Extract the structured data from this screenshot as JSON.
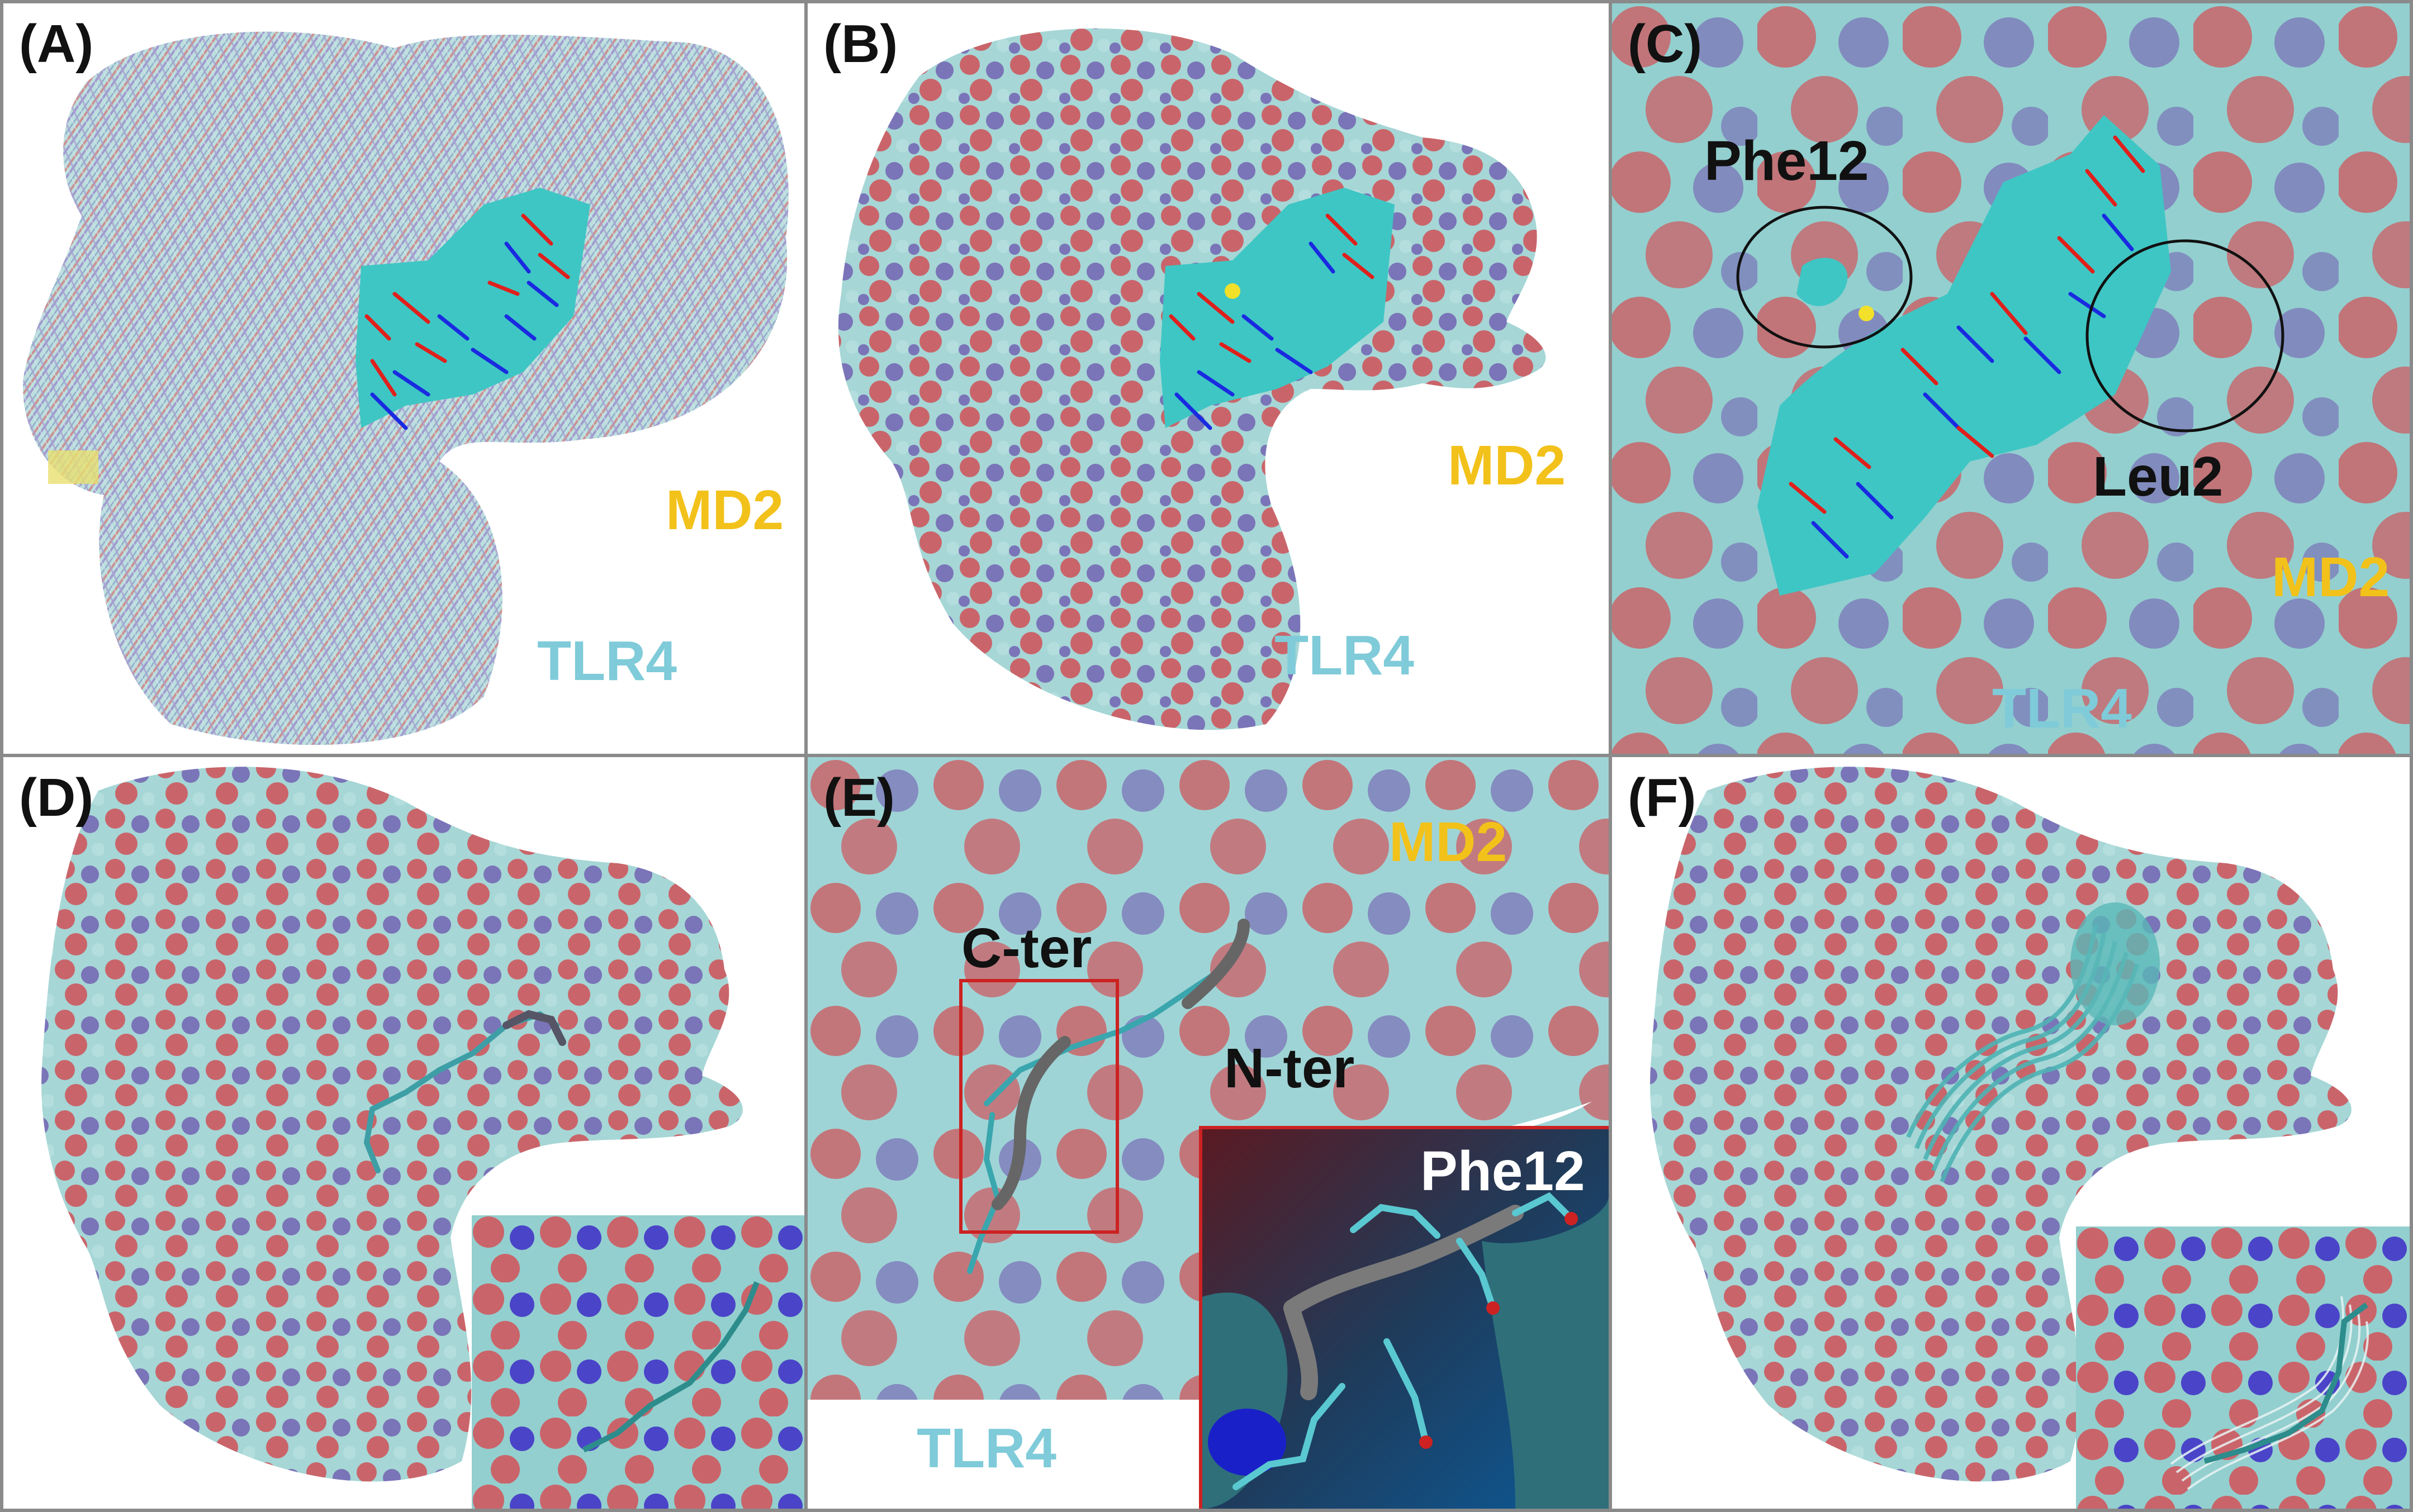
{
  "panels": {
    "a": {
      "label": "(A)",
      "md2": "MD2",
      "tlr4": "TLR4"
    },
    "b": {
      "label": "(B)",
      "md2": "MD2",
      "tlr4": "TLR4"
    },
    "c": {
      "label": "(C)",
      "phe": "Phe12",
      "leu": "Leu2",
      "md2": "MD2",
      "tlr4": "TLR4"
    },
    "d": {
      "label": "(D)"
    },
    "e": {
      "label": "(E)",
      "md2": "MD2",
      "cter": "C-ter",
      "nter": "N-ter",
      "tlr4": "TLR4",
      "inset_phe": "Phe12"
    },
    "f": {
      "label": "(F)"
    }
  },
  "colors": {
    "surface_cyan": "#9fd4d6",
    "surface_red": "#c9656a",
    "surface_blue": "#7a74b8",
    "ligand_cyan": "#3ec6c4",
    "red": "#e0201c",
    "blue": "#1a2ae0",
    "md2_label": "#f2c21a",
    "tlr4_label": "#7fcbd9",
    "panel_border": "#8a8a8a",
    "inset_border": "#cc2222"
  }
}
